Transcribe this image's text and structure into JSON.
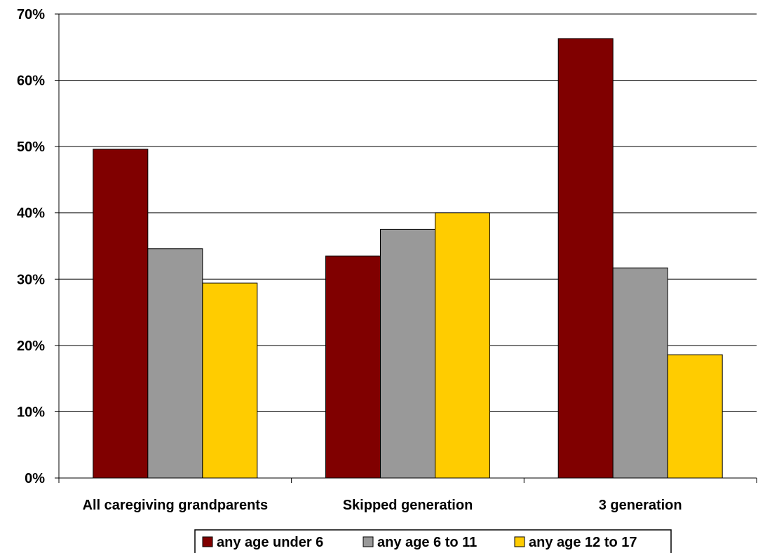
{
  "chart_data": {
    "type": "bar",
    "categories": [
      "All caregiving grandparents",
      "Skipped generation",
      "3 generation"
    ],
    "series": [
      {
        "name": "any age under 6",
        "values": [
          49.6,
          33.5,
          66.3
        ],
        "color": "#800000"
      },
      {
        "name": "any age 6 to 11",
        "values": [
          34.6,
          37.5,
          31.7
        ],
        "color": "#999999"
      },
      {
        "name": "any age 12 to 17",
        "values": [
          29.4,
          40.0,
          18.6
        ],
        "color": "#ffcc00"
      }
    ],
    "ylim": [
      0,
      70
    ],
    "yticks": [
      0,
      10,
      20,
      30,
      40,
      50,
      60,
      70
    ],
    "ytick_labels": [
      "0%",
      "10%",
      "20%",
      "30%",
      "40%",
      "50%",
      "60%",
      "70%"
    ],
    "grid": true,
    "legend_position": "bottom",
    "title": "",
    "xlabel": "",
    "ylabel": ""
  }
}
